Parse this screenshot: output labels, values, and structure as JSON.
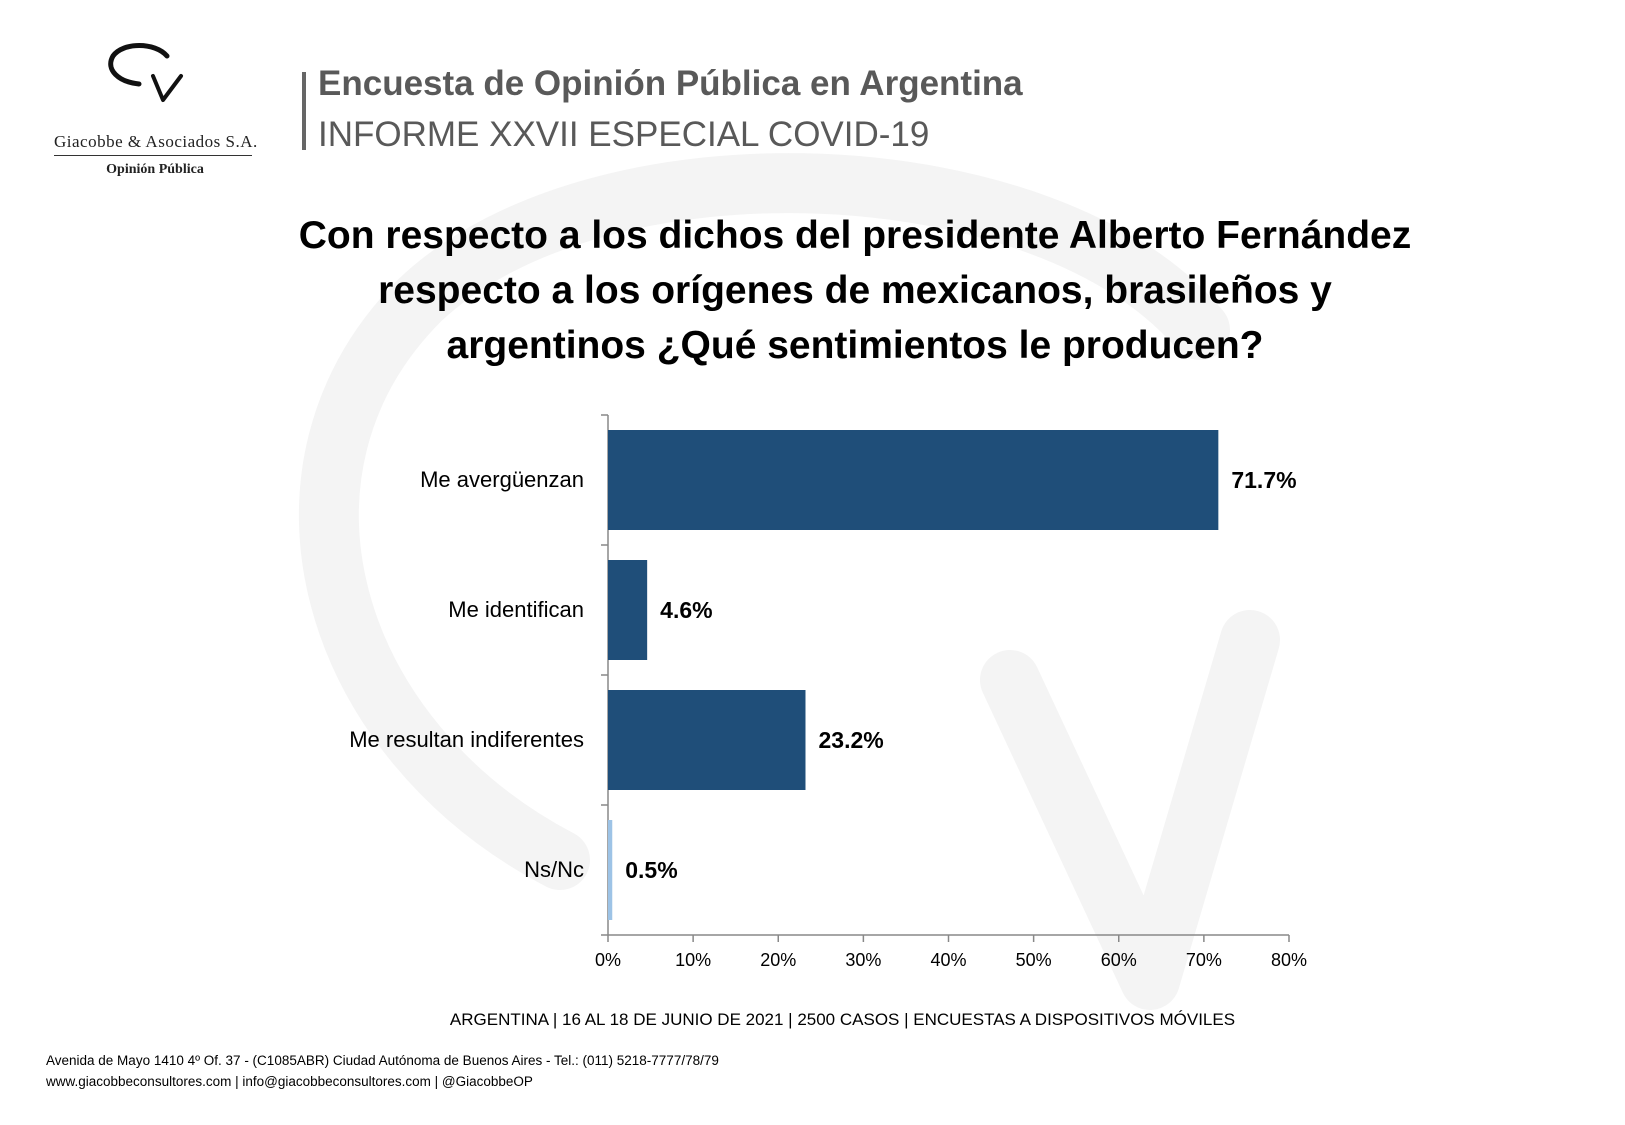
{
  "logo": {
    "name": "Giacobbe & Asociados S.A.",
    "tagline": "Opinión Pública"
  },
  "header": {
    "title": "Encuesta de Opinión Pública en Argentina",
    "subtitle": "INFORME XXVII ESPECIAL COVID-19"
  },
  "question": "Con respecto a los dichos del presidente Alberto Fernández respecto a los orígenes de mexicanos, brasileños y argentinos ¿Qué sentimientos le producen?",
  "chart_data": {
    "type": "bar",
    "orientation": "horizontal",
    "title": "",
    "xlabel": "",
    "ylabel": "",
    "categories": [
      "Me avergüenzan",
      "Me identifican",
      "Me resultan indiferentes",
      "Ns/Nc"
    ],
    "values": [
      71.7,
      4.6,
      23.2,
      0.5
    ],
    "value_labels": [
      "71.7%",
      "4.6%",
      "23.2%",
      "0.5%"
    ],
    "colors": [
      "#1f4e79",
      "#1f4e79",
      "#1f4e79",
      "#9dc3e6"
    ],
    "xlim": [
      0,
      80
    ],
    "xticks": [
      "0%",
      "10%",
      "20%",
      "30%",
      "40%",
      "50%",
      "60%",
      "70%",
      "80%"
    ],
    "grid": false,
    "legend": "none"
  },
  "footer": {
    "note": "ARGENTINA | 16 AL 18 DE JUNIO DE 2021 | 2500 CASOS | ENCUESTAS A DISPOSITIVOS MÓVILES",
    "address_line1": "Avenida de Mayo 1410 4º Of. 37 - (C1085ABR) Ciudad Autónoma de Buenos Aires - Tel.: (011) 5218-7777/78/79",
    "address_line2": "www.giacobbeconsultores.com | info@giacobbeconsultores.com | @GiacobbeOP"
  }
}
